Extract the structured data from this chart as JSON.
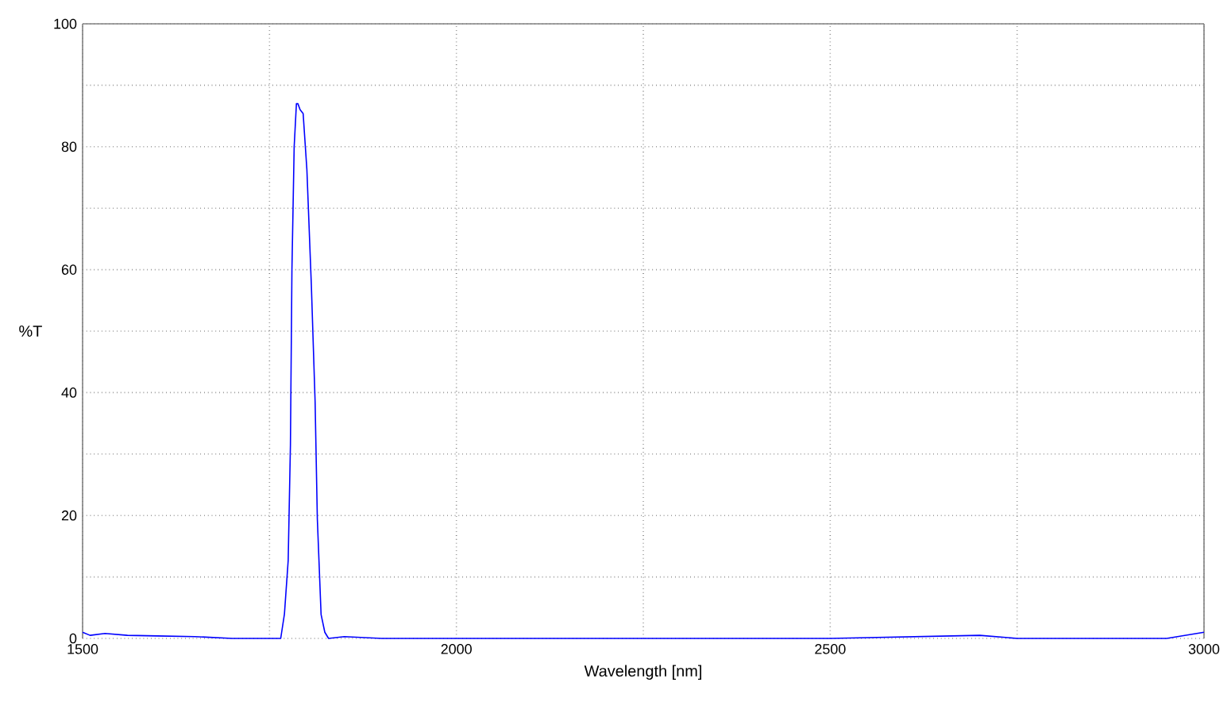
{
  "chart_data": {
    "type": "line",
    "xlabel": "Wavelength [nm]",
    "ylabel": "%T",
    "x": [
      1500,
      1510,
      1530,
      1560,
      1600,
      1650,
      1700,
      1750,
      1765,
      1770,
      1775,
      1778,
      1780,
      1783,
      1786,
      1788,
      1791,
      1795,
      1800,
      1806,
      1811,
      1814,
      1819,
      1824,
      1829,
      1850,
      1900,
      2000,
      2200,
      2500,
      2700,
      2750,
      2800,
      2950,
      3000
    ],
    "values": [
      1,
      0.5,
      0.8,
      0.5,
      0.4,
      0.3,
      0,
      0,
      0,
      4,
      12.7,
      31.5,
      60,
      80,
      87,
      87,
      86,
      85.4,
      76.3,
      57.4,
      38.5,
      19.4,
      3.9,
      1,
      0,
      0.3,
      0,
      0,
      0,
      0,
      0.5,
      0,
      0,
      0,
      1
    ],
    "color": "#0000ff",
    "xlim": [
      1500,
      3000
    ],
    "ylim": [
      0,
      100
    ],
    "xticks": [
      1500,
      {
        "value": 1750,
        "label": null
      },
      2000,
      {
        "value": 2250,
        "label": null
      },
      2500,
      {
        "value": 2750,
        "label": null
      },
      3000
    ],
    "yticks": [
      0,
      {
        "value": 10,
        "label": null
      },
      20,
      {
        "value": 30,
        "label": null
      },
      40,
      {
        "value": 50,
        "label": null
      },
      60,
      {
        "value": 70,
        "label": null
      },
      80,
      {
        "value": 90,
        "label": null
      },
      100
    ],
    "grid": true
  }
}
